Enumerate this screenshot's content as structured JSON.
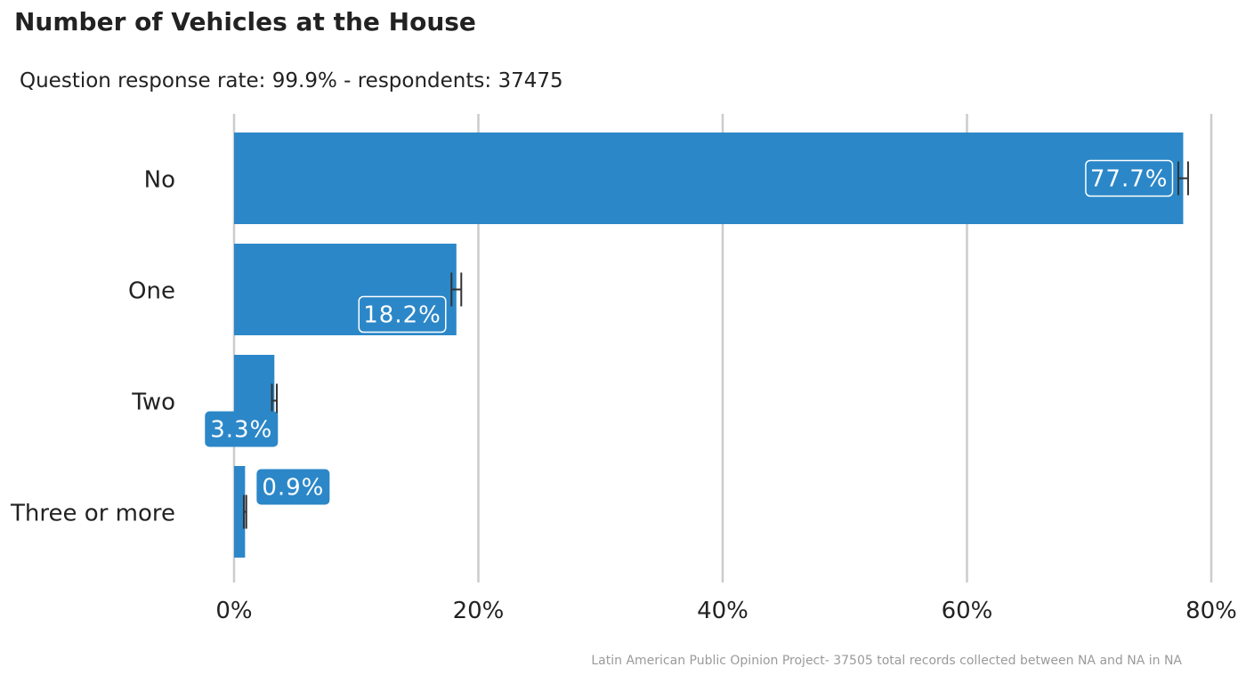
{
  "chart_data": {
    "type": "bar",
    "orientation": "horizontal",
    "title": "Number of Vehicles at the House",
    "subtitle": "Question response rate: 99.9%  - respondents: 37475",
    "caption": "Latin American Public Opinion Project- 37505 total records collected between NA and NA in  NA",
    "categories": [
      "No",
      "One",
      "Two",
      "Three or more"
    ],
    "values": [
      77.7,
      18.2,
      3.3,
      0.9
    ],
    "value_labels": [
      "77.7%",
      "18.2%",
      "3.3%",
      "0.9%"
    ],
    "error_bars": [
      {
        "low": 77.3,
        "high": 78.1
      },
      {
        "low": 17.8,
        "high": 18.6
      },
      {
        "low": 3.1,
        "high": 3.5
      },
      {
        "low": 0.8,
        "high": 1.0
      }
    ],
    "xlim": [
      0,
      80
    ],
    "x_ticks": [
      0,
      20,
      40,
      60,
      80
    ],
    "x_tick_labels": [
      "0%",
      "20%",
      "40%",
      "60%",
      "80%"
    ],
    "grid": "vertical",
    "legend": "none",
    "colors": {
      "bar": "#2b87c8",
      "grid": "#cccccc",
      "error_bar": "#333333",
      "label_text": "#ffffff"
    }
  }
}
